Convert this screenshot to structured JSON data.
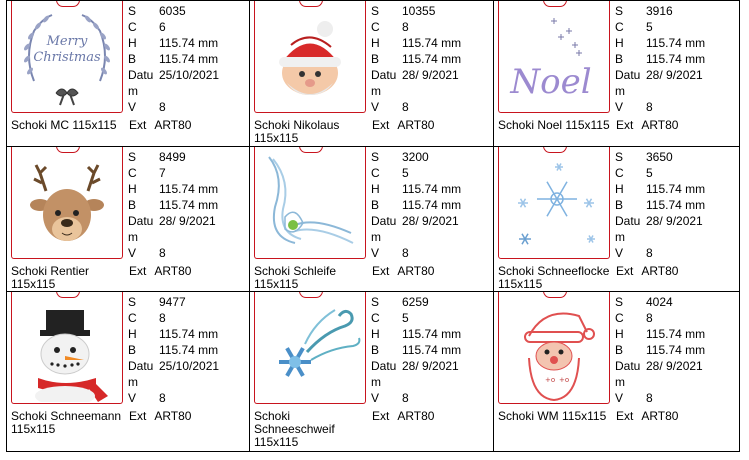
{
  "labels": {
    "s": "S",
    "c": "C",
    "h": "H",
    "b": "B",
    "datum": "Datum",
    "v": "V",
    "ext": "Ext"
  },
  "designs": [
    {
      "name": "Schoki MC 115x115",
      "s": "6035",
      "c": "6",
      "h": "115.74 mm",
      "b": "115.74 mm",
      "date": "25/10/2021",
      "v": "8",
      "ext": "ART80",
      "thumb_icon": "merry-christmas-wreath-icon",
      "thumb_text": [
        "Merry",
        "Christmas"
      ]
    },
    {
      "name": "Schoki Nikolaus 115x115",
      "s": "10355",
      "c": "8",
      "h": "115.74 mm",
      "b": "115.74 mm",
      "date": "28/ 9/2021",
      "v": "8",
      "ext": "ART80",
      "thumb_icon": "santa-face-icon"
    },
    {
      "name": "Schoki Noel 115x115",
      "s": "3916",
      "c": "5",
      "h": "115.74 mm",
      "b": "115.74 mm",
      "date": "28/ 9/2021",
      "v": "8",
      "ext": "ART80",
      "thumb_icon": "noel-script-icon",
      "thumb_text": [
        "Noel"
      ]
    },
    {
      "name": "Schoki Rentier 115x115",
      "s": "8499",
      "c": "7",
      "h": "115.74 mm",
      "b": "115.74 mm",
      "date": "28/ 9/2021",
      "v": "8",
      "ext": "ART80",
      "thumb_icon": "reindeer-icon"
    },
    {
      "name": "Schoki Schleife 115x115",
      "s": "3200",
      "c": "5",
      "h": "115.74 mm",
      "b": "115.74 mm",
      "date": "28/ 9/2021",
      "v": "8",
      "ext": "ART80",
      "thumb_icon": "ribbon-bow-icon"
    },
    {
      "name": "Schoki Schneeflocke 115x115",
      "s": "3650",
      "c": "5",
      "h": "115.74 mm",
      "b": "115.74 mm",
      "date": "28/ 9/2021",
      "v": "8",
      "ext": "ART80",
      "thumb_icon": "snowflake-icon"
    },
    {
      "name": "Schoki Schneemann 115x115",
      "s": "9477",
      "c": "8",
      "h": "115.74 mm",
      "b": "115.74 mm",
      "date": "25/10/2021",
      "v": "8",
      "ext": "ART80",
      "thumb_icon": "snowman-icon"
    },
    {
      "name": "Schoki Schneeschweif 115x115",
      "s": "6259",
      "c": "5",
      "h": "115.74 mm",
      "b": "115.74 mm",
      "date": "28/ 9/2021",
      "v": "8",
      "ext": "ART80",
      "thumb_icon": "snowflake-swirl-icon"
    },
    {
      "name": "Schoki WM 115x115",
      "s": "4024",
      "c": "8",
      "h": "115.74 mm",
      "b": "115.74 mm",
      "date": "28/ 9/2021",
      "v": "8",
      "ext": "ART80",
      "thumb_icon": "santa-outline-icon"
    }
  ],
  "colors": {
    "grid_border": "#000000",
    "thumb_border": "#c8141e"
  }
}
